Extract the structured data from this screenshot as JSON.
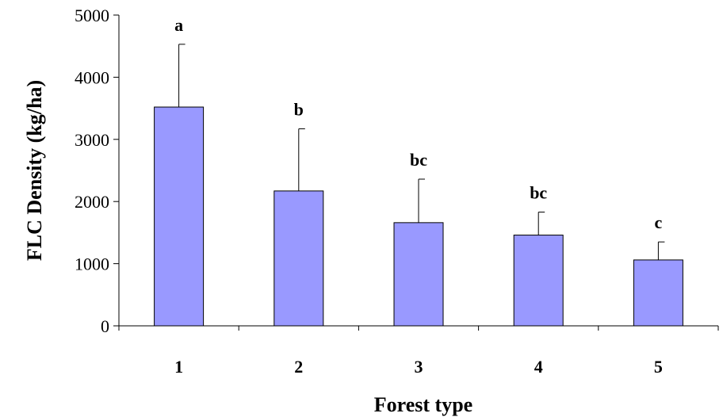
{
  "chart_data": {
    "type": "bar",
    "categories": [
      "1",
      "2",
      "3",
      "4",
      "5"
    ],
    "values": [
      3520,
      2170,
      1660,
      1460,
      1060
    ],
    "errors": [
      1010,
      1000,
      700,
      370,
      290
    ],
    "significance_labels": [
      "a",
      "b",
      "bc",
      "bc",
      "c"
    ],
    "xlabel": "Forest type",
    "ylabel": "FLC Density (kg/ha)",
    "ylim": [
      0,
      5000
    ],
    "yticks": [
      "0",
      "1000",
      "2000",
      "3000",
      "4000",
      "5000"
    ],
    "grid": false,
    "bar_color": "#9999ff",
    "bar_edge_color": "#000000"
  }
}
